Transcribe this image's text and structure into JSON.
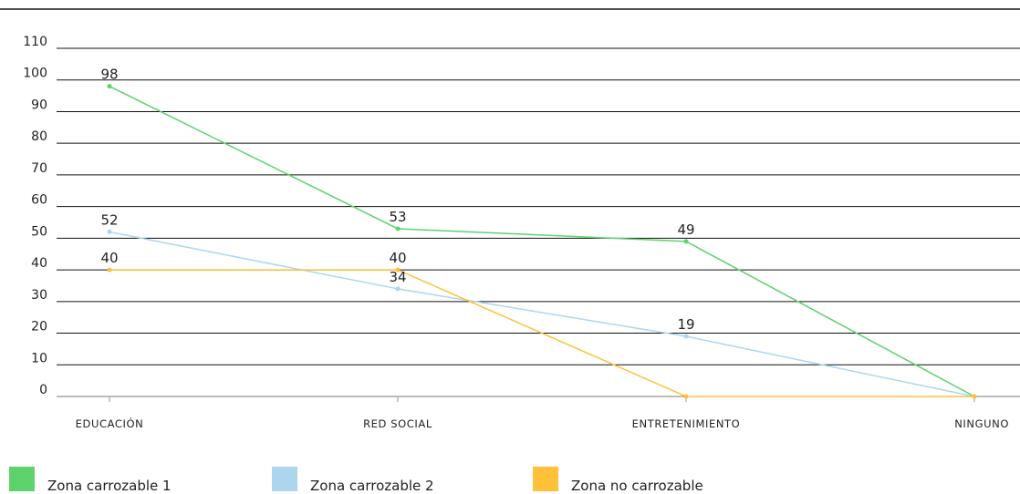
{
  "chart_data": {
    "type": "line",
    "categories": [
      "EDUCACIÓN",
      "RED SOCIAL",
      "ENTRETENIMIENTO",
      "NINGUNO"
    ],
    "y_ticks": [
      0,
      10,
      20,
      30,
      40,
      50,
      60,
      70,
      80,
      90,
      100,
      110
    ],
    "ylim": [
      0,
      110
    ],
    "grid": true,
    "legend_position": "bottom",
    "series": [
      {
        "name": "Zona carrozable 1",
        "color": "#5fd36b",
        "values": [
          98,
          53,
          49,
          0
        ],
        "labels": [
          "98",
          "53",
          "49",
          ""
        ]
      },
      {
        "name": "Zona carrozable 2",
        "color": "#acd6ee",
        "values": [
          52,
          34,
          19,
          0
        ],
        "labels": [
          "52",
          "34",
          "19",
          ""
        ]
      },
      {
        "name": "Zona no carrozable",
        "color": "#ffc03a",
        "values": [
          40,
          40,
          0,
          0
        ],
        "labels": [
          "40",
          "40",
          "",
          ""
        ]
      }
    ]
  }
}
